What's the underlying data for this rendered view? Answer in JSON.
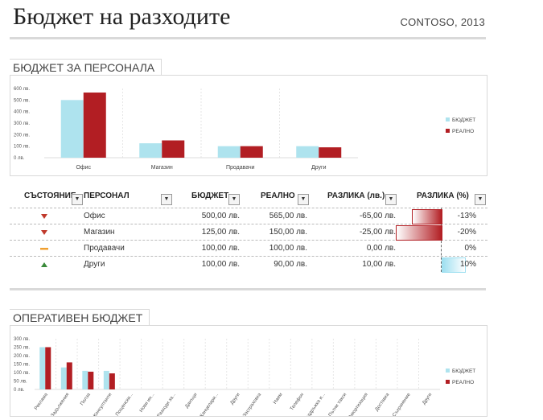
{
  "header": {
    "title": "Бюджет на разходите",
    "company": "CONTOSO, 2013"
  },
  "personnel_chart": {
    "section_title": "БЮДЖЕТ ЗА ПЕРСОНАЛА",
    "chart_data": {
      "type": "bar",
      "categories": [
        "Офис",
        "Магазин",
        "Продавачи",
        "Други"
      ],
      "series": [
        {
          "name": "БЮДЖЕТ",
          "values": [
            500,
            125,
            100,
            100
          ],
          "color": "#aee3ee"
        },
        {
          "name": "РЕАЛНО",
          "values": [
            565,
            150,
            100,
            90
          ],
          "color": "#b21e23"
        }
      ],
      "yticks": [
        "600 лв.",
        "500 лв.",
        "400 лв.",
        "300 лв.",
        "200 лв.",
        "100 лв.",
        "0 лв."
      ],
      "ylim": [
        0,
        600
      ],
      "legend": "right"
    }
  },
  "table": {
    "headers": [
      "СЪСТОЯНИЕ",
      "ПЕРСОНАЛ",
      "БЮДЖЕТ",
      "РЕАЛНО",
      "РАЗЛИКА (лв.)",
      "РАЗЛИКА (%)"
    ],
    "rows": [
      {
        "status": "down",
        "name": "Офис",
        "budget": "500,00 лв.",
        "actual": "565,00 лв.",
        "diff": "-65,00 лв.",
        "pct": "-13%",
        "pct_value": -13
      },
      {
        "status": "down",
        "name": "Магазин",
        "budget": "125,00 лв.",
        "actual": "150,00 лв.",
        "diff": "-25,00 лв.",
        "pct": "-20%",
        "pct_value": -20
      },
      {
        "status": "flat",
        "name": "Продавачи",
        "budget": "100,00 лв.",
        "actual": "100,00 лв.",
        "diff": "0,00 лв.",
        "pct": "0%",
        "pct_value": 0
      },
      {
        "status": "up",
        "name": "Други",
        "budget": "100,00 лв.",
        "actual": "90,00 лв.",
        "diff": "10,00 лв.",
        "pct": "10%",
        "pct_value": 10
      }
    ],
    "colors": {
      "down": "#c0392b",
      "flat": "#f0a030",
      "up": "#3a8a3a"
    }
  },
  "operating_chart": {
    "section_title": "ОПЕРАТИВЕН БЮДЖЕТ",
    "chart_data": {
      "type": "bar",
      "categories": [
        "Реклама",
        "Задължения",
        "Полза",
        "Консултанти",
        "Пощенски...",
        "Нови ин...",
        "Разходи за...",
        "Данъци",
        "Канцелари...",
        "Други",
        "Застраховка",
        "Наем",
        "Телефон",
        "Поддръжка и...",
        "Пътни такси",
        "Амортизация",
        "Доставка",
        "Съхранение",
        "Други"
      ],
      "series": [
        {
          "name": "БЮДЖЕТ",
          "values": [
            250,
            130,
            110,
            110,
            0,
            0,
            0,
            0,
            0,
            0,
            0,
            0,
            0,
            0,
            0,
            0,
            0,
            0,
            0
          ],
          "color": "#aee3ee"
        },
        {
          "name": "РЕАЛНО",
          "values": [
            250,
            160,
            105,
            95,
            0,
            0,
            0,
            0,
            0,
            0,
            0,
            0,
            0,
            0,
            0,
            0,
            0,
            0,
            0
          ],
          "color": "#b21e23"
        }
      ],
      "yticks": [
        "300 лв.",
        "250 лв.",
        "200 лв.",
        "150 лв.",
        "100 лв.",
        "50 лв.",
        "0 лв."
      ],
      "ylim": [
        0,
        300
      ],
      "legend": "right"
    }
  }
}
